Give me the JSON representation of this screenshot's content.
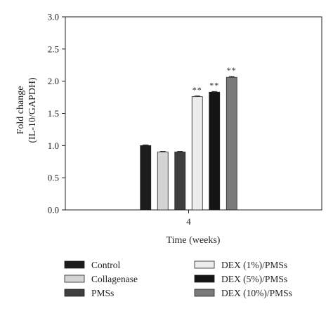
{
  "chart_data": {
    "type": "bar",
    "categories": [
      "4"
    ],
    "xlabel": "Time (weeks)",
    "ylabel_lines": [
      "Fold change",
      "(IL-10/GAPDH)"
    ],
    "ylim": [
      0,
      3.0
    ],
    "yticks": [
      "0.0",
      "0.5",
      "1.0",
      "1.5",
      "2.0",
      "2.5",
      "3.0"
    ],
    "grid": false,
    "legend_position": "bottom",
    "series": [
      {
        "name": "Control",
        "values": [
          1.0
        ],
        "error": [
          0.01
        ],
        "color": "#1c1c1c",
        "annotation": ""
      },
      {
        "name": "Collagenase",
        "values": [
          0.9
        ],
        "error": [
          0.01
        ],
        "color": "#d4d4d4",
        "annotation": ""
      },
      {
        "name": "PMSs",
        "values": [
          0.9
        ],
        "error": [
          0.01
        ],
        "color": "#3e3e3e",
        "annotation": ""
      },
      {
        "name": "DEX (1%)/PMSs",
        "values": [
          1.76
        ],
        "error": [
          0.01
        ],
        "color": "#ececec",
        "annotation": "**"
      },
      {
        "name": "DEX (5%)/PMSs",
        "values": [
          1.83
        ],
        "error": [
          0.01
        ],
        "color": "#141414",
        "annotation": "**"
      },
      {
        "name": "DEX (10%)/PMSs",
        "values": [
          2.06
        ],
        "error": [
          0.015
        ],
        "color": "#7a7a7a",
        "annotation": "**"
      }
    ]
  }
}
